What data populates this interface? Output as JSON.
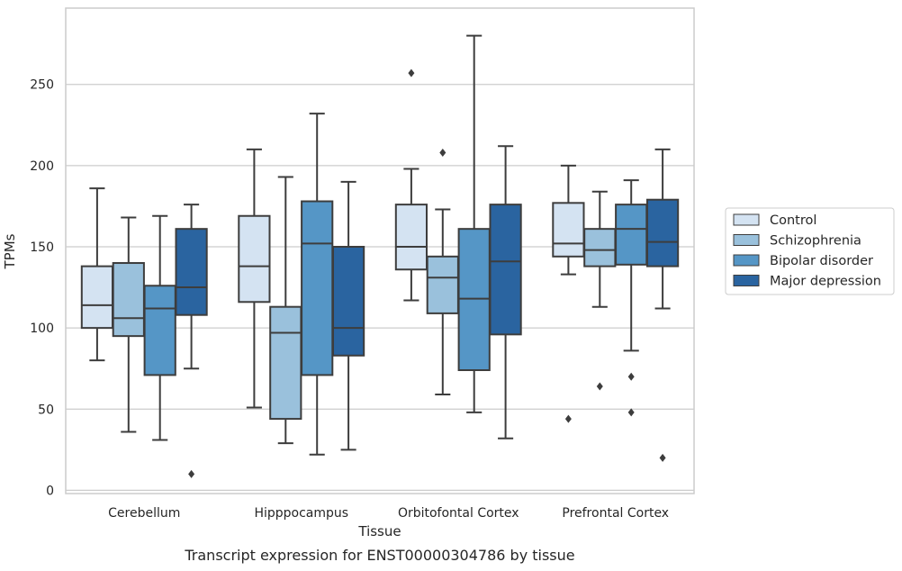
{
  "chart_data": {
    "type": "box",
    "xlabel": "Tissue",
    "ylabel": "TPMs",
    "caption": "Transcript expression for ENST00000304786 by tissue",
    "ylim": [
      -2,
      297
    ],
    "yticks": [
      0,
      50,
      100,
      150,
      200,
      250
    ],
    "grid": "horizontal",
    "legend_position": "right",
    "categories": [
      "Cerebellum",
      "Hipppocampus",
      "Orbitofontal Cortex",
      "Prefrontal Cortex"
    ],
    "series": [
      {
        "name": "Control",
        "color": "#d4e3f2",
        "boxes": [
          {
            "whislo": 80,
            "q1": 100,
            "med": 114,
            "q3": 138,
            "whishi": 186,
            "fliers": []
          },
          {
            "whislo": 51,
            "q1": 116,
            "med": 138,
            "q3": 169,
            "whishi": 210,
            "fliers": []
          },
          {
            "whislo": 117,
            "q1": 136,
            "med": 150,
            "q3": 176,
            "whishi": 198,
            "fliers": [
              257
            ]
          },
          {
            "whislo": 133,
            "q1": 144,
            "med": 152,
            "q3": 177,
            "whishi": 200,
            "fliers": [
              44
            ]
          }
        ]
      },
      {
        "name": "Schizophrenia",
        "color": "#9ac1dc",
        "boxes": [
          {
            "whislo": 36,
            "q1": 95,
            "med": 106,
            "q3": 140,
            "whishi": 168,
            "fliers": []
          },
          {
            "whislo": 29,
            "q1": 44,
            "med": 97,
            "q3": 113,
            "whishi": 193,
            "fliers": []
          },
          {
            "whislo": 59,
            "q1": 109,
            "med": 131,
            "q3": 144,
            "whishi": 173,
            "fliers": [
              208
            ]
          },
          {
            "whislo": 113,
            "q1": 138,
            "med": 148,
            "q3": 161,
            "whishi": 184,
            "fliers": [
              64
            ]
          }
        ]
      },
      {
        "name": "Bipolar disorder",
        "color": "#5596c6",
        "boxes": [
          {
            "whislo": 31,
            "q1": 71,
            "med": 112,
            "q3": 126,
            "whishi": 169,
            "fliers": []
          },
          {
            "whislo": 22,
            "q1": 71,
            "med": 152,
            "q3": 178,
            "whishi": 232,
            "fliers": []
          },
          {
            "whislo": 48,
            "q1": 74,
            "med": 118,
            "q3": 161,
            "whishi": 280,
            "fliers": []
          },
          {
            "whislo": 86,
            "q1": 139,
            "med": 161,
            "q3": 176,
            "whishi": 191,
            "fliers": [
              70,
              48
            ]
          }
        ]
      },
      {
        "name": "Major depression",
        "color": "#2a64a0",
        "boxes": [
          {
            "whislo": 75,
            "q1": 108,
            "med": 125,
            "q3": 161,
            "whishi": 176,
            "fliers": [
              10
            ]
          },
          {
            "whislo": 25,
            "q1": 83,
            "med": 100,
            "q3": 150,
            "whishi": 190,
            "fliers": []
          },
          {
            "whislo": 32,
            "q1": 96,
            "med": 141,
            "q3": 176,
            "whishi": 212,
            "fliers": []
          },
          {
            "whislo": 112,
            "q1": 138,
            "med": 153,
            "q3": 179,
            "whishi": 210,
            "fliers": [
              20
            ]
          }
        ]
      }
    ]
  }
}
